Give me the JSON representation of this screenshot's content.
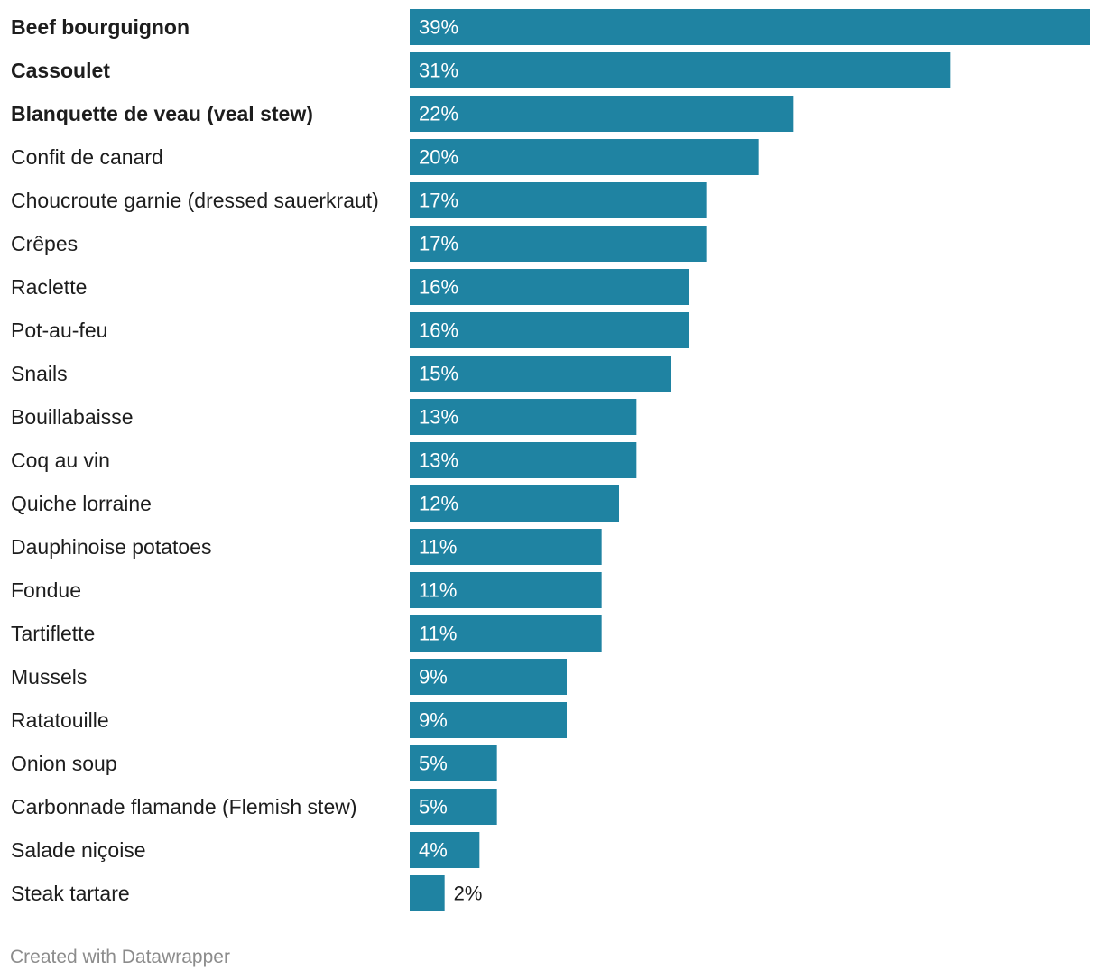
{
  "chart_data": {
    "type": "bar",
    "orientation": "horizontal",
    "bar_color": "#1f83a2",
    "xlim": [
      0,
      39
    ],
    "value_suffix": "%",
    "categories": [
      "Beef bourguignon",
      "Cassoulet",
      "Blanquette de veau (veal stew)",
      "Confit de canard",
      "Choucroute garnie (dressed sauerkraut)",
      "Crêpes",
      "Raclette",
      "Pot-au-feu",
      "Snails",
      "Bouillabaisse",
      "Coq au vin",
      "Quiche lorraine",
      "Dauphinoise potatoes",
      "Fondue",
      "Tartiflette",
      "Mussels",
      "Ratatouille",
      "Onion soup",
      "Carbonnade flamande (Flemish stew)",
      "Salade niçoise",
      "Steak tartare"
    ],
    "values": [
      39,
      31,
      22,
      20,
      17,
      17,
      16,
      16,
      15,
      13,
      13,
      12,
      11,
      11,
      11,
      9,
      9,
      5,
      5,
      4,
      2
    ],
    "value_labels": [
      "39%",
      "31%",
      "22%",
      "20%",
      "17%",
      "17%",
      "16%",
      "16%",
      "15%",
      "13%",
      "13%",
      "12%",
      "11%",
      "11%",
      "11%",
      "9%",
      "9%",
      "5%",
      "5%",
      "4%",
      "2%"
    ],
    "bold_categories": [
      "Beef bourguignon",
      "Cassoulet",
      "Blanquette de veau (veal stew)"
    ]
  },
  "footer": {
    "credit": "Created with Datawrapper"
  }
}
